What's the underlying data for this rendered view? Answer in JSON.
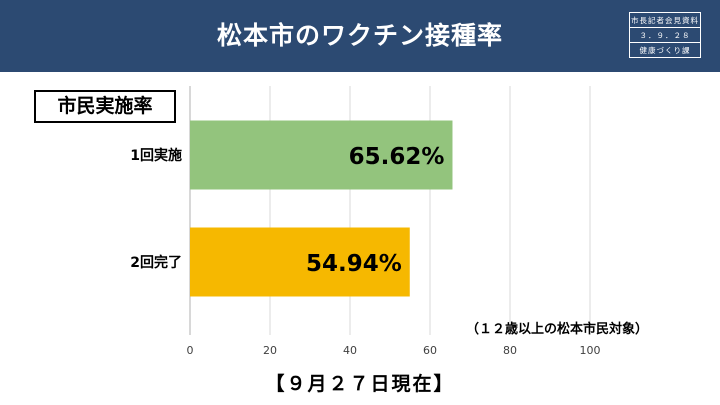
{
  "header": {
    "title": "松本市のワクチン接種率",
    "stamp": [
      "市長記者会見資料",
      "３．９．２８",
      "健康づくり課"
    ]
  },
  "label_box": "市民実施率",
  "note": "（１２歳以上の松本市民対象）",
  "date_caption": "【９月２７日現在】",
  "chart_data": {
    "type": "bar",
    "orientation": "horizontal",
    "categories": [
      "1回実施",
      "2回完了"
    ],
    "values": [
      65.62,
      54.94
    ],
    "data_labels": [
      "65.62%",
      "54.94%"
    ],
    "colors": [
      "#93c47d",
      "#f6b800"
    ],
    "xlim": [
      0,
      100
    ],
    "xticks": [
      0,
      20,
      40,
      60,
      80,
      100
    ],
    "grid": true
  }
}
